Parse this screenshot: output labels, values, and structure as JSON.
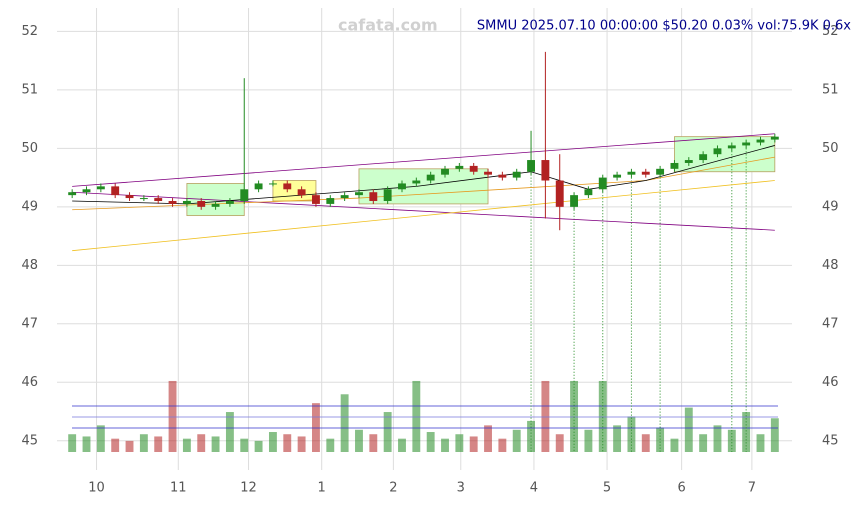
{
  "chart_data": {
    "type": "candlestick",
    "title": "SMMU 2025.07.10 00:00:00 $50.20 0.03% vol:75.9K 0.6x",
    "watermark": "cafata.com",
    "xlim": [
      -0.5,
      49.5
    ],
    "xticks": [
      {
        "value": 1.7,
        "label": "10"
      },
      {
        "value": 7.4,
        "label": "11"
      },
      {
        "value": 12.3,
        "label": "12"
      },
      {
        "value": 17.4,
        "label": "1"
      },
      {
        "value": 22.4,
        "label": "2"
      },
      {
        "value": 27.1,
        "label": "3"
      },
      {
        "value": 32.2,
        "label": "4"
      },
      {
        "value": 37.3,
        "label": "5"
      },
      {
        "value": 42.5,
        "label": "6"
      },
      {
        "value": 47.4,
        "label": "7"
      }
    ],
    "ylim": [
      44.5,
      52.4
    ],
    "yticks": [
      45,
      46,
      47,
      48,
      49,
      50,
      51,
      52
    ],
    "y2lim": [
      0,
      1000
    ],
    "grid": true,
    "up_color": "#228b22",
    "down_color": "#b22222",
    "open": [
      49.2,
      49.25,
      49.3,
      49.35,
      49.2,
      49.15,
      49.15,
      49.1,
      49.05,
      49.1,
      49.0,
      49.05,
      49.1,
      49.3,
      49.4,
      49.4,
      49.3,
      49.2,
      49.05,
      49.15,
      49.2,
      49.25,
      49.1,
      49.3,
      49.4,
      49.45,
      49.55,
      49.65,
      49.7,
      49.6,
      49.55,
      49.5,
      49.6,
      49.8,
      49.45,
      49.0,
      49.2,
      49.3,
      49.5,
      49.55,
      49.6,
      49.55,
      49.65,
      49.75,
      49.8,
      49.9,
      50.0,
      50.05,
      50.1,
      50.15
    ],
    "high": [
      49.3,
      49.35,
      49.4,
      49.4,
      49.25,
      49.2,
      49.2,
      49.15,
      49.15,
      49.15,
      49.1,
      49.15,
      51.2,
      49.45,
      49.45,
      49.45,
      49.35,
      49.25,
      49.2,
      49.25,
      49.3,
      49.3,
      49.35,
      49.45,
      49.5,
      49.6,
      49.7,
      49.75,
      49.75,
      49.65,
      49.6,
      49.65,
      50.3,
      51.65,
      49.9,
      49.25,
      49.35,
      49.55,
      49.6,
      49.65,
      49.65,
      49.7,
      49.8,
      49.85,
      49.95,
      50.05,
      50.1,
      50.15,
      50.2,
      50.25
    ],
    "low": [
      49.15,
      49.2,
      49.25,
      49.15,
      49.1,
      49.1,
      49.05,
      49.0,
      49.0,
      48.95,
      48.95,
      49.0,
      49.05,
      49.25,
      49.35,
      49.25,
      49.15,
      49.0,
      49.0,
      49.1,
      49.15,
      49.05,
      49.05,
      49.25,
      49.35,
      49.4,
      49.5,
      49.6,
      49.55,
      49.5,
      49.45,
      49.45,
      49.55,
      48.8,
      48.6,
      48.95,
      49.15,
      49.25,
      49.45,
      49.5,
      49.5,
      49.5,
      49.6,
      49.7,
      49.75,
      49.85,
      49.95,
      50.0,
      50.05,
      50.1
    ],
    "close": [
      49.25,
      49.3,
      49.35,
      49.2,
      49.15,
      49.15,
      49.1,
      49.05,
      49.1,
      49.0,
      49.05,
      49.1,
      49.3,
      49.4,
      49.4,
      49.3,
      49.2,
      49.05,
      49.15,
      49.2,
      49.25,
      49.1,
      49.3,
      49.4,
      49.45,
      49.55,
      49.65,
      49.7,
      49.6,
      49.55,
      49.5,
      49.6,
      49.8,
      49.45,
      49.0,
      49.2,
      49.3,
      49.5,
      49.55,
      49.6,
      49.55,
      49.65,
      49.75,
      49.8,
      49.9,
      50.0,
      50.05,
      50.1,
      50.15,
      50.2
    ],
    "volume": [
      40,
      35,
      60,
      30,
      25,
      40,
      35,
      160,
      30,
      40,
      35,
      90,
      30,
      25,
      45,
      40,
      35,
      110,
      30,
      130,
      50,
      40,
      90,
      30,
      160,
      45,
      30,
      40,
      35,
      60,
      30,
      50,
      70,
      160,
      40,
      160,
      50,
      160,
      60,
      80,
      40,
      55,
      30,
      100,
      40,
      60,
      50,
      90,
      40,
      76
    ],
    "overlays": [
      {
        "color": "#800080",
        "x": [
          0,
          49
        ],
        "values": [
          49.35,
          50.25
        ]
      },
      {
        "color": "#800080",
        "x": [
          0,
          49
        ],
        "values": [
          49.25,
          48.6
        ]
      },
      {
        "color": "#f0c020",
        "x": [
          0,
          49
        ],
        "values": [
          48.25,
          49.45
        ]
      },
      {
        "color": "#e69a20",
        "x": [
          0,
          10,
          20,
          30,
          40,
          49
        ],
        "values": [
          48.95,
          49.05,
          49.15,
          49.3,
          49.45,
          49.85
        ]
      },
      {
        "color": "#000000",
        "x": [
          0,
          8,
          16,
          24,
          32,
          36,
          40,
          49
        ],
        "values": [
          49.1,
          49.05,
          49.2,
          49.35,
          49.6,
          49.3,
          49.45,
          50.05
        ]
      }
    ],
    "zones": [
      {
        "color": "#ccffcc",
        "x": [
          8,
          12
        ],
        "values": [
          48.85,
          49.4
        ]
      },
      {
        "color": "#ffff99",
        "x": [
          14,
          17
        ],
        "values": [
          49.1,
          49.45
        ]
      },
      {
        "color": "#ccffcc",
        "x": [
          20,
          29
        ],
        "values": [
          49.05,
          49.65
        ]
      },
      {
        "color": "#ccffcc",
        "x": [
          42,
          49
        ],
        "values": [
          49.6,
          50.2
        ]
      }
    ],
    "signal_x": [
      32,
      35,
      37,
      39,
      41,
      46,
      47
    ]
  }
}
